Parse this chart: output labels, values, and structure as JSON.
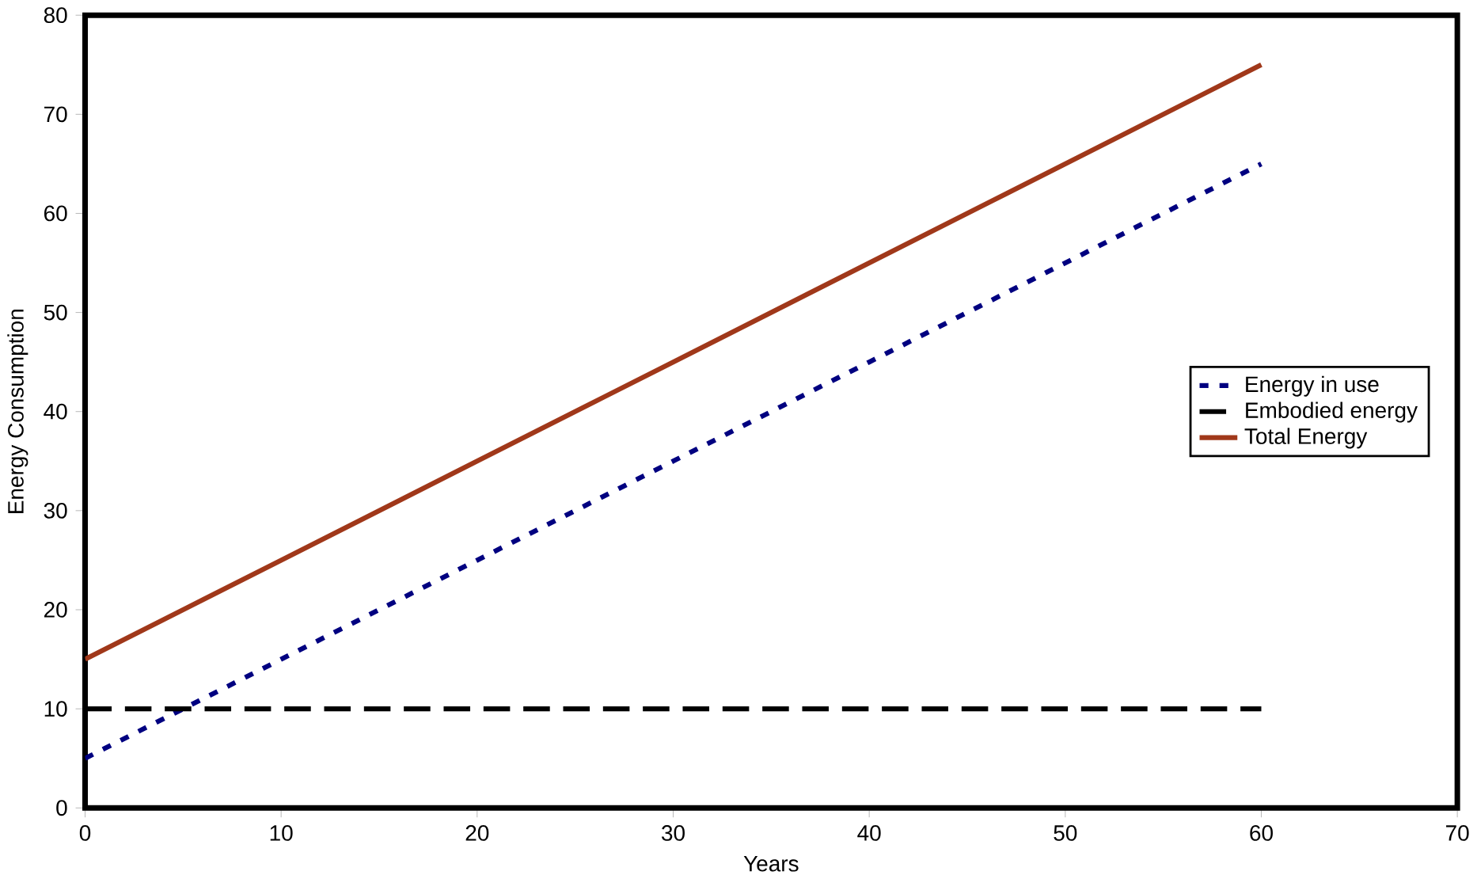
{
  "chart_data": {
    "type": "line",
    "xlabel": "Years",
    "ylabel": "Energy Consumption",
    "xlim": [
      0,
      70
    ],
    "ylim": [
      0,
      80
    ],
    "xticks": [
      0,
      10,
      20,
      30,
      40,
      50,
      60,
      70
    ],
    "yticks": [
      0,
      10,
      20,
      30,
      40,
      50,
      60,
      70,
      80
    ],
    "grid": false,
    "legend": "right",
    "marker": "none",
    "series": [
      {
        "name": "Energy in use",
        "color": "#000080",
        "x": [
          0,
          10,
          20,
          30,
          40,
          50,
          60
        ],
        "values": [
          5,
          15,
          25,
          35,
          45,
          55,
          65
        ],
        "line_style": "dotted"
      },
      {
        "name": "Embodied energy",
        "color": "#000000",
        "x": [
          0,
          30,
          60
        ],
        "values": [
          10,
          10,
          10
        ],
        "line_style": "dashed"
      },
      {
        "name": "Total Energy",
        "color": "#a0381a",
        "x": [
          0,
          10,
          20,
          30,
          40,
          50,
          60
        ],
        "values": [
          15,
          25,
          35,
          45,
          55,
          65,
          75
        ],
        "line_style": "solid"
      }
    ]
  }
}
